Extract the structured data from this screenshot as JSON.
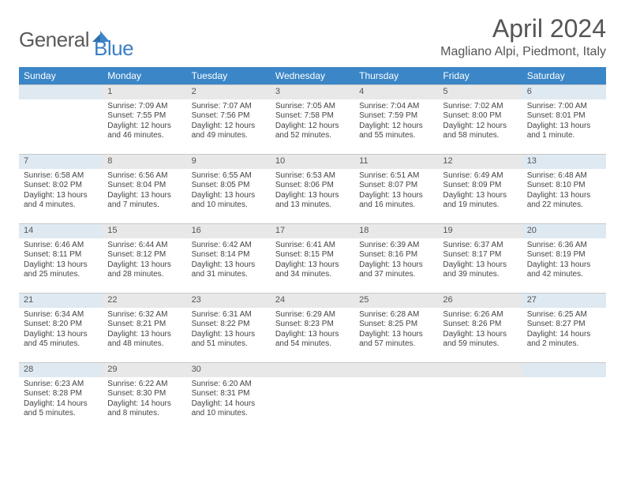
{
  "logo": {
    "left": "General",
    "right": "Blue"
  },
  "title": "April 2024",
  "location": "Magliano Alpi, Piedmont, Italy",
  "colors": {
    "header_bg": "#3b86c7",
    "header_text": "#ffffff",
    "daynum_bg": "#e8e8e8",
    "daynum_weekend_bg": "#dfe9f2",
    "border": "#c8c8c8",
    "body_text": "#444444",
    "title_text": "#555555",
    "logo_grey": "#5a5a5a",
    "logo_blue": "#3b7fc4"
  },
  "weekdays": [
    "Sunday",
    "Monday",
    "Tuesday",
    "Wednesday",
    "Thursday",
    "Friday",
    "Saturday"
  ],
  "start_offset": 1,
  "days": [
    {
      "n": 1,
      "sr": "7:09 AM",
      "ss": "7:55 PM",
      "dl": "12 hours and 46 minutes."
    },
    {
      "n": 2,
      "sr": "7:07 AM",
      "ss": "7:56 PM",
      "dl": "12 hours and 49 minutes."
    },
    {
      "n": 3,
      "sr": "7:05 AM",
      "ss": "7:58 PM",
      "dl": "12 hours and 52 minutes."
    },
    {
      "n": 4,
      "sr": "7:04 AM",
      "ss": "7:59 PM",
      "dl": "12 hours and 55 minutes."
    },
    {
      "n": 5,
      "sr": "7:02 AM",
      "ss": "8:00 PM",
      "dl": "12 hours and 58 minutes."
    },
    {
      "n": 6,
      "sr": "7:00 AM",
      "ss": "8:01 PM",
      "dl": "13 hours and 1 minute."
    },
    {
      "n": 7,
      "sr": "6:58 AM",
      "ss": "8:02 PM",
      "dl": "13 hours and 4 minutes."
    },
    {
      "n": 8,
      "sr": "6:56 AM",
      "ss": "8:04 PM",
      "dl": "13 hours and 7 minutes."
    },
    {
      "n": 9,
      "sr": "6:55 AM",
      "ss": "8:05 PM",
      "dl": "13 hours and 10 minutes."
    },
    {
      "n": 10,
      "sr": "6:53 AM",
      "ss": "8:06 PM",
      "dl": "13 hours and 13 minutes."
    },
    {
      "n": 11,
      "sr": "6:51 AM",
      "ss": "8:07 PM",
      "dl": "13 hours and 16 minutes."
    },
    {
      "n": 12,
      "sr": "6:49 AM",
      "ss": "8:09 PM",
      "dl": "13 hours and 19 minutes."
    },
    {
      "n": 13,
      "sr": "6:48 AM",
      "ss": "8:10 PM",
      "dl": "13 hours and 22 minutes."
    },
    {
      "n": 14,
      "sr": "6:46 AM",
      "ss": "8:11 PM",
      "dl": "13 hours and 25 minutes."
    },
    {
      "n": 15,
      "sr": "6:44 AM",
      "ss": "8:12 PM",
      "dl": "13 hours and 28 minutes."
    },
    {
      "n": 16,
      "sr": "6:42 AM",
      "ss": "8:14 PM",
      "dl": "13 hours and 31 minutes."
    },
    {
      "n": 17,
      "sr": "6:41 AM",
      "ss": "8:15 PM",
      "dl": "13 hours and 34 minutes."
    },
    {
      "n": 18,
      "sr": "6:39 AM",
      "ss": "8:16 PM",
      "dl": "13 hours and 37 minutes."
    },
    {
      "n": 19,
      "sr": "6:37 AM",
      "ss": "8:17 PM",
      "dl": "13 hours and 39 minutes."
    },
    {
      "n": 20,
      "sr": "6:36 AM",
      "ss": "8:19 PM",
      "dl": "13 hours and 42 minutes."
    },
    {
      "n": 21,
      "sr": "6:34 AM",
      "ss": "8:20 PM",
      "dl": "13 hours and 45 minutes."
    },
    {
      "n": 22,
      "sr": "6:32 AM",
      "ss": "8:21 PM",
      "dl": "13 hours and 48 minutes."
    },
    {
      "n": 23,
      "sr": "6:31 AM",
      "ss": "8:22 PM",
      "dl": "13 hours and 51 minutes."
    },
    {
      "n": 24,
      "sr": "6:29 AM",
      "ss": "8:23 PM",
      "dl": "13 hours and 54 minutes."
    },
    {
      "n": 25,
      "sr": "6:28 AM",
      "ss": "8:25 PM",
      "dl": "13 hours and 57 minutes."
    },
    {
      "n": 26,
      "sr": "6:26 AM",
      "ss": "8:26 PM",
      "dl": "13 hours and 59 minutes."
    },
    {
      "n": 27,
      "sr": "6:25 AM",
      "ss": "8:27 PM",
      "dl": "14 hours and 2 minutes."
    },
    {
      "n": 28,
      "sr": "6:23 AM",
      "ss": "8:28 PM",
      "dl": "14 hours and 5 minutes."
    },
    {
      "n": 29,
      "sr": "6:22 AM",
      "ss": "8:30 PM",
      "dl": "14 hours and 8 minutes."
    },
    {
      "n": 30,
      "sr": "6:20 AM",
      "ss": "8:31 PM",
      "dl": "14 hours and 10 minutes."
    }
  ],
  "labels": {
    "sunrise": "Sunrise:",
    "sunset": "Sunset:",
    "daylight": "Daylight:"
  }
}
